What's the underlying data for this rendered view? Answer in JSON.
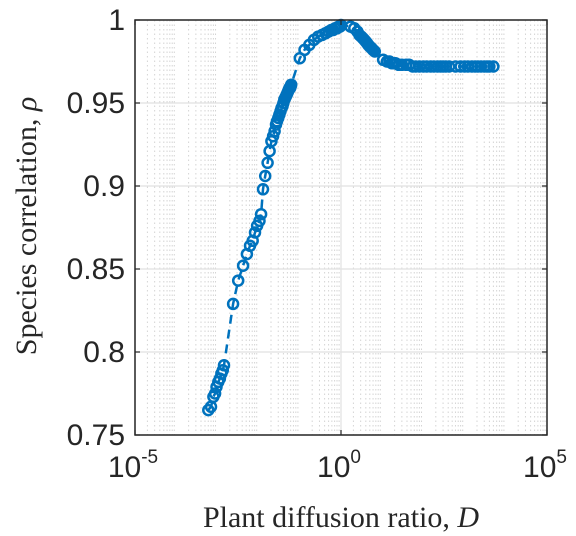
{
  "chart_data": {
    "type": "scatter",
    "xlabel": "Plant diffusion ratio, D",
    "xlabel_text": "Plant diffusion ratio, ",
    "xlabel_var": "D",
    "ylabel": "Species correlation, ρ",
    "ylabel_text": "Species correlation, ",
    "ylabel_var": "ρ",
    "x_scale": "log",
    "xlim": [
      1e-05,
      100000
    ],
    "ylim": [
      0.75,
      1
    ],
    "x_ticks": [
      {
        "base": "10",
        "exp": "-5",
        "value": 1e-05
      },
      {
        "base": "10",
        "exp": "0",
        "value": 1
      },
      {
        "base": "10",
        "exp": "5",
        "value": 100000
      }
    ],
    "y_ticks": [
      "0.75",
      "0.8",
      "0.85",
      "0.9",
      "0.95",
      "1"
    ],
    "grid": true,
    "marker": "open-circle",
    "line_style": "dashed",
    "color": "#0072BD",
    "series": [
      {
        "x": [
          0.0006,
          0.0007,
          0.0008,
          0.00088,
          0.00095,
          0.00105,
          0.00115,
          0.00125,
          0.00135,
          0.00145,
          0.0024,
          0.0032,
          0.0042,
          0.0052,
          0.0062,
          0.0072,
          0.0082,
          0.0092,
          0.0105,
          0.0115,
          0.0128,
          0.0145,
          0.0165,
          0.0185,
          0.0205,
          0.0225,
          0.0245,
          0.0265,
          0.028,
          0.03,
          0.032,
          0.034,
          0.036,
          0.038,
          0.04,
          0.042,
          0.044,
          0.046,
          0.048,
          0.05,
          0.052,
          0.054,
          0.056,
          0.058,
          0.06,
          0.062,
          0.1,
          0.13,
          0.17,
          0.22,
          0.28,
          0.35,
          0.42,
          0.5,
          0.58,
          0.65,
          0.72,
          0.8,
          0.88,
          0.95,
          1.0,
          1.7,
          2.1,
          2.5,
          2.8,
          3.1,
          3.4,
          3.7,
          4.0,
          4.3,
          4.6,
          5.0,
          5.5,
          6.0,
          6.6,
          10.5,
          13,
          15,
          17,
          19,
          21,
          25,
          30,
          38,
          45,
          55,
          65,
          80,
          100,
          120,
          150,
          180,
          220,
          260,
          300,
          350,
          420,
          600,
          800,
          1000,
          1200,
          1500,
          1800,
          2100,
          2500,
          3000,
          3500,
          4000,
          5000
        ],
        "y": [
          0.765,
          0.767,
          0.773,
          0.775,
          0.779,
          0.782,
          0.784,
          0.787,
          0.789,
          0.792,
          0.829,
          0.843,
          0.852,
          0.859,
          0.864,
          0.867,
          0.872,
          0.876,
          0.879,
          0.883,
          0.898,
          0.906,
          0.914,
          0.921,
          0.927,
          0.93,
          0.933,
          0.937,
          0.939,
          0.941,
          0.943,
          0.945,
          0.947,
          0.948,
          0.95,
          0.952,
          0.953,
          0.954,
          0.955,
          0.956,
          0.957,
          0.958,
          0.959,
          0.959,
          0.96,
          0.961,
          0.977,
          0.982,
          0.985,
          0.988,
          0.99,
          0.991,
          0.992,
          0.993,
          0.994,
          0.994,
          0.995,
          0.995,
          0.996,
          0.996,
          0.997,
          0.996,
          0.995,
          0.993,
          0.991,
          0.99,
          0.989,
          0.988,
          0.987,
          0.986,
          0.985,
          0.984,
          0.983,
          0.982,
          0.981,
          0.976,
          0.975,
          0.975,
          0.974,
          0.974,
          0.974,
          0.973,
          0.973,
          0.973,
          0.973,
          0.972,
          0.972,
          0.972,
          0.972,
          0.972,
          0.972,
          0.972,
          0.972,
          0.972,
          0.972,
          0.972,
          0.972,
          0.972,
          0.972,
          0.972,
          0.972,
          0.972,
          0.972,
          0.972,
          0.972,
          0.972,
          0.972,
          0.972,
          0.972
        ]
      }
    ]
  }
}
